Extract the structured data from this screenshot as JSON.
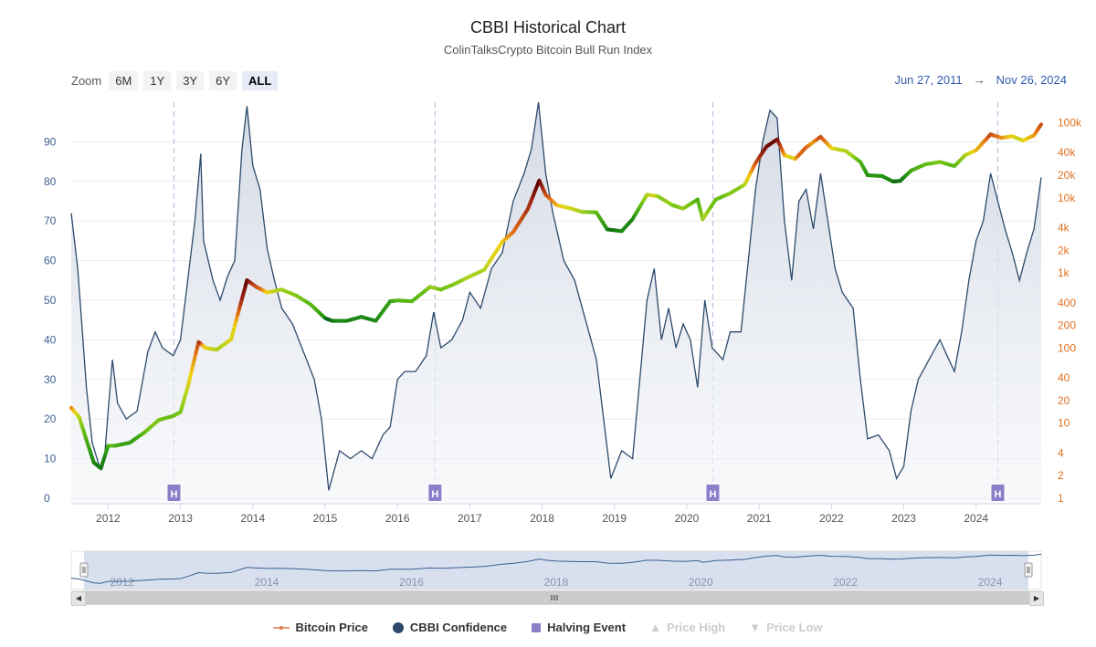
{
  "header": {
    "title": "CBBI Historical Chart",
    "subtitle": "ColinTalksCrypto Bitcoin Bull Run Index"
  },
  "zoom": {
    "label": "Zoom",
    "buttons": [
      "6M",
      "1Y",
      "3Y",
      "6Y",
      "ALL"
    ],
    "active": "ALL"
  },
  "range": {
    "from": "Jun 27, 2011",
    "arrow": "→",
    "to": "Nov 26, 2024"
  },
  "legend": {
    "bitcoin_price": "Bitcoin Price",
    "cbbi_confidence": "CBBI Confidence",
    "halving_event": "Halving Event",
    "price_high": "Price High",
    "price_low": "Price Low"
  },
  "colors": {
    "cbbi_line": "#2d4a6b",
    "cbbi_fill": "#dfe4ec",
    "halving": "#8b7fc9",
    "price_axis": "#e07020",
    "cbbi_axis": "#3a5f8f"
  },
  "chart_data": {
    "type": "line",
    "title": "CBBI Historical Chart",
    "subtitle": "ColinTalksCrypto Bitcoin Bull Run Index",
    "x_range": [
      2011.49,
      2024.9
    ],
    "x_ticks": [
      "2012",
      "2013",
      "2014",
      "2015",
      "2016",
      "2017",
      "2018",
      "2019",
      "2020",
      "2021",
      "2022",
      "2023",
      "2024"
    ],
    "y_left": {
      "label": "CBBI Confidence",
      "ylim": [
        0,
        100
      ],
      "ticks": [
        "0",
        "10",
        "20",
        "30",
        "40",
        "50",
        "60",
        "70",
        "80",
        "90"
      ]
    },
    "y_right": {
      "label": "Bitcoin Price",
      "scale": "log",
      "ylim": [
        1,
        150000
      ],
      "ticks": [
        "1",
        "2",
        "4",
        "10",
        "20",
        "40",
        "100",
        "200",
        "400",
        "1k",
        "2k",
        "4k",
        "10k",
        "20k",
        "40k",
        "100k"
      ]
    },
    "halving_label": "H",
    "halvings": [
      2012.91,
      2016.52,
      2020.36,
      2024.3
    ],
    "navigator_ticks": [
      "2012",
      "2014",
      "2016",
      "2018",
      "2020",
      "2022",
      "2024"
    ],
    "series": [
      {
        "name": "CBBI Confidence",
        "points": [
          [
            2011.49,
            72
          ],
          [
            2011.58,
            58
          ],
          [
            2011.62,
            48
          ],
          [
            2011.7,
            28
          ],
          [
            2011.78,
            14
          ],
          [
            2011.88,
            8
          ],
          [
            2011.95,
            10
          ],
          [
            2012.0,
            22
          ],
          [
            2012.06,
            35
          ],
          [
            2012.13,
            24
          ],
          [
            2012.25,
            20
          ],
          [
            2012.4,
            22
          ],
          [
            2012.55,
            37
          ],
          [
            2012.65,
            42
          ],
          [
            2012.75,
            38
          ],
          [
            2012.9,
            36
          ],
          [
            2013.0,
            40
          ],
          [
            2013.1,
            55
          ],
          [
            2013.2,
            70
          ],
          [
            2013.28,
            87
          ],
          [
            2013.32,
            65
          ],
          [
            2013.45,
            55
          ],
          [
            2013.55,
            50
          ],
          [
            2013.65,
            56
          ],
          [
            2013.75,
            60
          ],
          [
            2013.85,
            88
          ],
          [
            2013.92,
            99
          ],
          [
            2014.0,
            84
          ],
          [
            2014.1,
            78
          ],
          [
            2014.2,
            63
          ],
          [
            2014.3,
            55
          ],
          [
            2014.4,
            48
          ],
          [
            2014.55,
            44
          ],
          [
            2014.7,
            37
          ],
          [
            2014.85,
            30
          ],
          [
            2014.95,
            20
          ],
          [
            2015.05,
            2
          ],
          [
            2015.2,
            12
          ],
          [
            2015.35,
            10
          ],
          [
            2015.5,
            12
          ],
          [
            2015.65,
            10
          ],
          [
            2015.8,
            16
          ],
          [
            2015.9,
            18
          ],
          [
            2016.0,
            30
          ],
          [
            2016.1,
            32
          ],
          [
            2016.25,
            32
          ],
          [
            2016.4,
            36
          ],
          [
            2016.5,
            47
          ],
          [
            2016.6,
            38
          ],
          [
            2016.75,
            40
          ],
          [
            2016.9,
            45
          ],
          [
            2017.0,
            52
          ],
          [
            2017.15,
            48
          ],
          [
            2017.3,
            58
          ],
          [
            2017.45,
            62
          ],
          [
            2017.6,
            75
          ],
          [
            2017.75,
            82
          ],
          [
            2017.85,
            88
          ],
          [
            2017.95,
            100
          ],
          [
            2018.05,
            82
          ],
          [
            2018.15,
            72
          ],
          [
            2018.3,
            60
          ],
          [
            2018.45,
            55
          ],
          [
            2018.6,
            45
          ],
          [
            2018.75,
            35
          ],
          [
            2018.85,
            20
          ],
          [
            2018.95,
            5
          ],
          [
            2019.1,
            12
          ],
          [
            2019.25,
            10
          ],
          [
            2019.35,
            30
          ],
          [
            2019.45,
            50
          ],
          [
            2019.55,
            58
          ],
          [
            2019.65,
            40
          ],
          [
            2019.75,
            48
          ],
          [
            2019.85,
            38
          ],
          [
            2019.95,
            44
          ],
          [
            2020.05,
            40
          ],
          [
            2020.15,
            28
          ],
          [
            2020.25,
            50
          ],
          [
            2020.35,
            38
          ],
          [
            2020.5,
            35
          ],
          [
            2020.6,
            42
          ],
          [
            2020.75,
            42
          ],
          [
            2020.85,
            60
          ],
          [
            2020.95,
            78
          ],
          [
            2021.05,
            90
          ],
          [
            2021.15,
            98
          ],
          [
            2021.25,
            96
          ],
          [
            2021.35,
            70
          ],
          [
            2021.45,
            55
          ],
          [
            2021.55,
            75
          ],
          [
            2021.65,
            78
          ],
          [
            2021.75,
            68
          ],
          [
            2021.85,
            82
          ],
          [
            2021.95,
            70
          ],
          [
            2022.05,
            58
          ],
          [
            2022.15,
            52
          ],
          [
            2022.3,
            48
          ],
          [
            2022.4,
            30
          ],
          [
            2022.5,
            15
          ],
          [
            2022.65,
            16
          ],
          [
            2022.8,
            12
          ],
          [
            2022.9,
            5
          ],
          [
            2023.0,
            8
          ],
          [
            2023.1,
            22
          ],
          [
            2023.2,
            30
          ],
          [
            2023.35,
            35
          ],
          [
            2023.5,
            40
          ],
          [
            2023.6,
            36
          ],
          [
            2023.7,
            32
          ],
          [
            2023.8,
            42
          ],
          [
            2023.9,
            55
          ],
          [
            2024.0,
            65
          ],
          [
            2024.1,
            70
          ],
          [
            2024.2,
            82
          ],
          [
            2024.3,
            75
          ],
          [
            2024.4,
            68
          ],
          [
            2024.5,
            62
          ],
          [
            2024.6,
            55
          ],
          [
            2024.7,
            62
          ],
          [
            2024.8,
            68
          ],
          [
            2024.9,
            81
          ]
        ]
      },
      {
        "name": "Bitcoin Price",
        "points": [
          [
            2011.49,
            16
          ],
          [
            2011.6,
            12
          ],
          [
            2011.7,
            6
          ],
          [
            2011.8,
            3
          ],
          [
            2011.9,
            2.5
          ],
          [
            2012.0,
            5
          ],
          [
            2012.1,
            5
          ],
          [
            2012.3,
            5.5
          ],
          [
            2012.5,
            7.5
          ],
          [
            2012.7,
            11
          ],
          [
            2012.9,
            12.5
          ],
          [
            2013.0,
            14
          ],
          [
            2013.1,
            30
          ],
          [
            2013.25,
            120
          ],
          [
            2013.35,
            100
          ],
          [
            2013.5,
            95
          ],
          [
            2013.7,
            130
          ],
          [
            2013.85,
            450
          ],
          [
            2013.92,
            800
          ],
          [
            2014.05,
            650
          ],
          [
            2014.2,
            550
          ],
          [
            2014.4,
            600
          ],
          [
            2014.6,
            500
          ],
          [
            2014.8,
            380
          ],
          [
            2015.0,
            250
          ],
          [
            2015.1,
            230
          ],
          [
            2015.3,
            230
          ],
          [
            2015.5,
            260
          ],
          [
            2015.7,
            230
          ],
          [
            2015.9,
            420
          ],
          [
            2016.0,
            430
          ],
          [
            2016.2,
            420
          ],
          [
            2016.45,
            650
          ],
          [
            2016.6,
            600
          ],
          [
            2016.8,
            720
          ],
          [
            2017.0,
            900
          ],
          [
            2017.2,
            1100
          ],
          [
            2017.45,
            2600
          ],
          [
            2017.6,
            3500
          ],
          [
            2017.8,
            7000
          ],
          [
            2017.96,
            17000
          ],
          [
            2018.05,
            11000
          ],
          [
            2018.2,
            8000
          ],
          [
            2018.4,
            7200
          ],
          [
            2018.55,
            6500
          ],
          [
            2018.75,
            6400
          ],
          [
            2018.9,
            3800
          ],
          [
            2019.1,
            3600
          ],
          [
            2019.25,
            5200
          ],
          [
            2019.45,
            11000
          ],
          [
            2019.6,
            10500
          ],
          [
            2019.8,
            8000
          ],
          [
            2019.95,
            7200
          ],
          [
            2020.15,
            9500
          ],
          [
            2020.22,
            5200
          ],
          [
            2020.4,
            9500
          ],
          [
            2020.6,
            11500
          ],
          [
            2020.8,
            15000
          ],
          [
            2020.95,
            29000
          ],
          [
            2021.1,
            48000
          ],
          [
            2021.25,
            60000
          ],
          [
            2021.35,
            37000
          ],
          [
            2021.5,
            33000
          ],
          [
            2021.65,
            47000
          ],
          [
            2021.85,
            65000
          ],
          [
            2022.0,
            46000
          ],
          [
            2022.2,
            42000
          ],
          [
            2022.4,
            30000
          ],
          [
            2022.5,
            20000
          ],
          [
            2022.7,
            19500
          ],
          [
            2022.85,
            16500
          ],
          [
            2022.95,
            16800
          ],
          [
            2023.1,
            23000
          ],
          [
            2023.3,
            28000
          ],
          [
            2023.5,
            30000
          ],
          [
            2023.7,
            26500
          ],
          [
            2023.85,
            37000
          ],
          [
            2024.0,
            43000
          ],
          [
            2024.2,
            70000
          ],
          [
            2024.35,
            63000
          ],
          [
            2024.5,
            66000
          ],
          [
            2024.65,
            58000
          ],
          [
            2024.8,
            68000
          ],
          [
            2024.9,
            95000
          ]
        ]
      }
    ]
  }
}
